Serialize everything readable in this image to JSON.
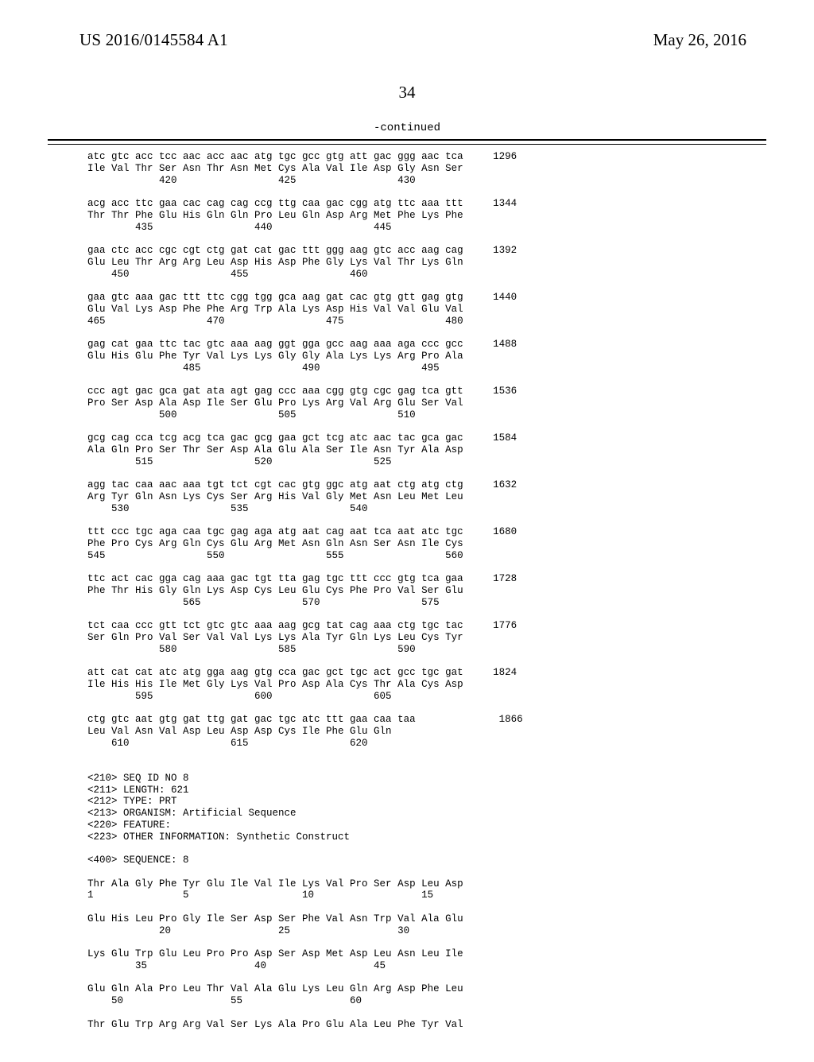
{
  "header": {
    "pubnum": "US 2016/0145584 A1",
    "date": "May 26, 2016"
  },
  "page_number": "34",
  "continued_label": "-continued",
  "seq_block": "atc gtc acc tcc aac acc aac atg tgc gcc gtg att gac ggg aac tca     1296\nIle Val Thr Ser Asn Thr Asn Met Cys Ala Val Ile Asp Gly Asn Ser\n            420                 425                 430\n\nacg acc ttc gaa cac cag cag ccg ttg caa gac cgg atg ttc aaa ttt     1344\nThr Thr Phe Glu His Gln Gln Pro Leu Gln Asp Arg Met Phe Lys Phe\n        435                 440                 445\n\ngaa ctc acc cgc cgt ctg gat cat gac ttt ggg aag gtc acc aag cag     1392\nGlu Leu Thr Arg Arg Leu Asp His Asp Phe Gly Lys Val Thr Lys Gln\n    450                 455                 460\n\ngaa gtc aaa gac ttt ttc cgg tgg gca aag gat cac gtg gtt gag gtg     1440\nGlu Val Lys Asp Phe Phe Arg Trp Ala Lys Asp His Val Val Glu Val\n465                 470                 475                 480\n\ngag cat gaa ttc tac gtc aaa aag ggt gga gcc aag aaa aga ccc gcc     1488\nGlu His Glu Phe Tyr Val Lys Lys Gly Gly Ala Lys Lys Arg Pro Ala\n                485                 490                 495\n\nccc agt gac gca gat ata agt gag ccc aaa cgg gtg cgc gag tca gtt     1536\nPro Ser Asp Ala Asp Ile Ser Glu Pro Lys Arg Val Arg Glu Ser Val\n            500                 505                 510\n\ngcg cag cca tcg acg tca gac gcg gaa gct tcg atc aac tac gca gac     1584\nAla Gln Pro Ser Thr Ser Asp Ala Glu Ala Ser Ile Asn Tyr Ala Asp\n        515                 520                 525\n\nagg tac caa aac aaa tgt tct cgt cac gtg ggc atg aat ctg atg ctg     1632\nArg Tyr Gln Asn Lys Cys Ser Arg His Val Gly Met Asn Leu Met Leu\n    530                 535                 540\n\nttt ccc tgc aga caa tgc gag aga atg aat cag aat tca aat atc tgc     1680\nPhe Pro Cys Arg Gln Cys Glu Arg Met Asn Gln Asn Ser Asn Ile Cys\n545                 550                 555                 560\n\nttc act cac gga cag aaa gac tgt tta gag tgc ttt ccc gtg tca gaa     1728\nPhe Thr His Gly Gln Lys Asp Cys Leu Glu Cys Phe Pro Val Ser Glu\n                565                 570                 575\n\ntct caa ccc gtt tct gtc gtc aaa aag gcg tat cag aaa ctg tgc tac     1776\nSer Gln Pro Val Ser Val Val Lys Lys Ala Tyr Gln Lys Leu Cys Tyr\n            580                 585                 590\n\natt cat cat atc atg gga aag gtg cca gac gct tgc act gcc tgc gat     1824\nIle His His Ile Met Gly Lys Val Pro Asp Ala Cys Thr Ala Cys Asp\n        595                 600                 605\n\nctg gtc aat gtg gat ttg gat gac tgc atc ttt gaa caa taa              1866\nLeu Val Asn Val Asp Leu Asp Asp Cys Ile Phe Glu Gln\n    610                 615                 620\n\n\n<210> SEQ ID NO 8\n<211> LENGTH: 621\n<212> TYPE: PRT\n<213> ORGANISM: Artificial Sequence\n<220> FEATURE:\n<223> OTHER INFORMATION: Synthetic Construct\n\n<400> SEQUENCE: 8\n\nThr Ala Gly Phe Tyr Glu Ile Val Ile Lys Val Pro Ser Asp Leu Asp\n1               5                   10                  15\n\nGlu His Leu Pro Gly Ile Ser Asp Ser Phe Val Asn Trp Val Ala Glu\n            20                  25                  30\n\nLys Glu Trp Glu Leu Pro Pro Asp Ser Asp Met Asp Leu Asn Leu Ile\n        35                  40                  45\n\nGlu Gln Ala Pro Leu Thr Val Ala Glu Lys Leu Gln Arg Asp Phe Leu\n    50                  55                  60\n\nThr Glu Trp Arg Arg Val Ser Lys Ala Pro Glu Ala Leu Phe Tyr Val"
}
